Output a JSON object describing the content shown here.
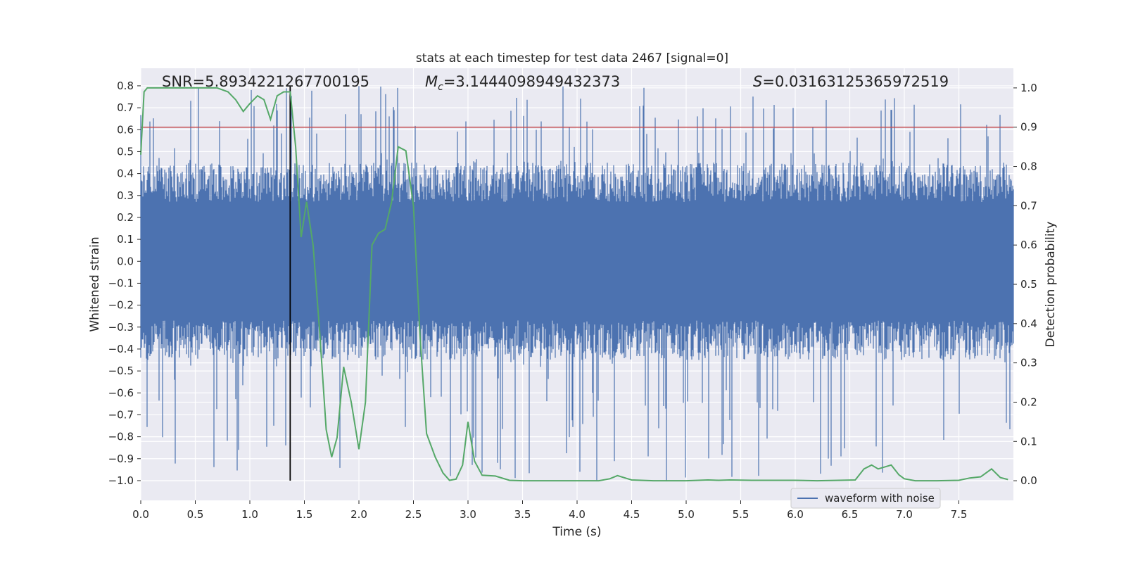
{
  "chart_data": {
    "type": "line",
    "title": "stats at each timestep for test data 2467 [signal=0]",
    "xlabel": "Time (s)",
    "ylabel": "Whitened strain",
    "y2label": "Detection probability",
    "xlim": [
      0.0,
      8.0
    ],
    "ylim": [
      -1.09,
      0.88
    ],
    "y2lim": [
      -0.05,
      1.05
    ],
    "x_ticks": [
      "0.0",
      "0.5",
      "1.0",
      "1.5",
      "2.0",
      "2.5",
      "3.0",
      "3.5",
      "4.0",
      "4.5",
      "5.0",
      "5.5",
      "6.0",
      "6.5",
      "7.0",
      "7.5"
    ],
    "y_ticks": [
      "0.8",
      "0.7",
      "0.6",
      "0.5",
      "0.4",
      "0.3",
      "0.2",
      "0.1",
      "0.0",
      "−0.1",
      "−0.2",
      "−0.3",
      "−0.4",
      "−0.5",
      "−0.6",
      "−0.7",
      "−0.8",
      "−0.9",
      "−1.0"
    ],
    "y2_ticks": [
      "1.0",
      "0.9",
      "0.8",
      "0.7",
      "0.6",
      "0.5",
      "0.4",
      "0.3",
      "0.2",
      "0.1",
      "0.0"
    ],
    "grid": true,
    "legend": {
      "placement": "lower-right",
      "entries": [
        "waveform with noise"
      ]
    },
    "annotations": {
      "snr": "SNR=5.8934221267700195",
      "mc_symbol": "M",
      "mc_sub": "c",
      "mc_value": "=3.1444098949432373",
      "s_symbol": "S",
      "s_value": "=0.031631253659725​19"
    },
    "threshold": {
      "axis": "right",
      "value": 0.9,
      "color": "#c44e52"
    },
    "marker_time": 1.37,
    "series": [
      {
        "name": "waveform with noise",
        "axis": "left",
        "color": "#4c72b0",
        "kind": "noise",
        "typical_range": [
          -0.45,
          0.45
        ],
        "peak_range": [
          -1.0,
          0.8
        ]
      },
      {
        "axis": "right",
        "color": "#55a868",
        "x": [
          0.0,
          0.03,
          0.06,
          0.12,
          0.2,
          0.3,
          0.4,
          0.5,
          0.6,
          0.7,
          0.8,
          0.87,
          0.94,
          1.0,
          1.07,
          1.13,
          1.19,
          1.25,
          1.31,
          1.37,
          1.42,
          1.47,
          1.52,
          1.58,
          1.64,
          1.7,
          1.75,
          1.8,
          1.86,
          1.93,
          2.0,
          2.06,
          2.12,
          2.18,
          2.24,
          2.3,
          2.36,
          2.43,
          2.5,
          2.56,
          2.62,
          2.7,
          2.77,
          2.83,
          2.89,
          2.95,
          3.0,
          3.06,
          3.13,
          3.25,
          3.38,
          3.5,
          3.7,
          4.0,
          4.2,
          4.3,
          4.37,
          4.5,
          4.7,
          5.0,
          5.2,
          5.3,
          5.4,
          5.6,
          6.0,
          6.2,
          6.4,
          6.55,
          6.63,
          6.7,
          6.76,
          6.82,
          6.88,
          6.95,
          7.0,
          7.1,
          7.3,
          7.5,
          7.6,
          7.7,
          7.8,
          7.88,
          7.95
        ],
        "y": [
          0.83,
          0.99,
          1.0,
          1.0,
          1.0,
          1.0,
          1.0,
          1.0,
          1.0,
          1.0,
          0.99,
          0.97,
          0.94,
          0.96,
          0.98,
          0.97,
          0.92,
          0.98,
          0.99,
          0.99,
          0.85,
          0.62,
          0.71,
          0.6,
          0.38,
          0.13,
          0.06,
          0.11,
          0.29,
          0.2,
          0.08,
          0.2,
          0.6,
          0.63,
          0.64,
          0.71,
          0.85,
          0.84,
          0.7,
          0.37,
          0.12,
          0.06,
          0.02,
          0.001,
          0.004,
          0.04,
          0.15,
          0.05,
          0.014,
          0.012,
          0.001,
          0.0,
          0.0,
          0.0,
          0.0,
          0.005,
          0.013,
          0.002,
          0.0,
          0.0,
          0.002,
          0.001,
          0.002,
          0.001,
          0.001,
          0.0,
          0.001,
          0.002,
          0.03,
          0.04,
          0.03,
          0.035,
          0.04,
          0.015,
          0.005,
          0.0,
          0.0,
          0.001,
          0.007,
          0.01,
          0.03,
          0.008,
          0.003
        ]
      }
    ]
  }
}
